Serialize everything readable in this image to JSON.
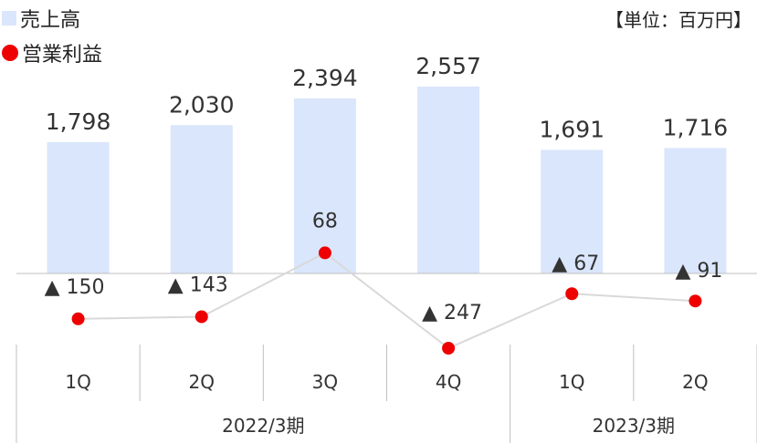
{
  "legend": {
    "sales_label": "売上高",
    "op_label": "営業利益"
  },
  "unit_label": "【単位：百万円】",
  "colors": {
    "bar": "#dae6fb",
    "line": "#d9d9d9",
    "point": "#ee0000",
    "axis": "#bfbfbf",
    "text": "#333333"
  },
  "chart_data": {
    "type": "bar",
    "categories": [
      "1Q",
      "2Q",
      "3Q",
      "4Q",
      "1Q",
      "2Q"
    ],
    "groups": [
      {
        "label": "2022/3期",
        "span": [
          0,
          3
        ]
      },
      {
        "label": "2023/3期",
        "span": [
          4,
          5
        ]
      }
    ],
    "series": [
      {
        "name": "売上高",
        "type": "bar",
        "values": [
          1798,
          2030,
          2394,
          2557,
          1691,
          1716
        ],
        "labels": [
          "1,798",
          "2,030",
          "2,394",
          "2,557",
          "1,691",
          "1,716"
        ]
      },
      {
        "name": "営業利益",
        "type": "line",
        "values": [
          -150,
          -143,
          68,
          -247,
          -67,
          -91
        ],
        "labels": [
          "▲ 150",
          "▲ 143",
          "68",
          "▲ 247",
          "▲ 67",
          "▲ 91"
        ]
      }
    ],
    "bar_axis": {
      "ylim": [
        0,
        2600
      ]
    },
    "line_axis": {
      "ylim": [
        -320,
        320
      ]
    }
  }
}
